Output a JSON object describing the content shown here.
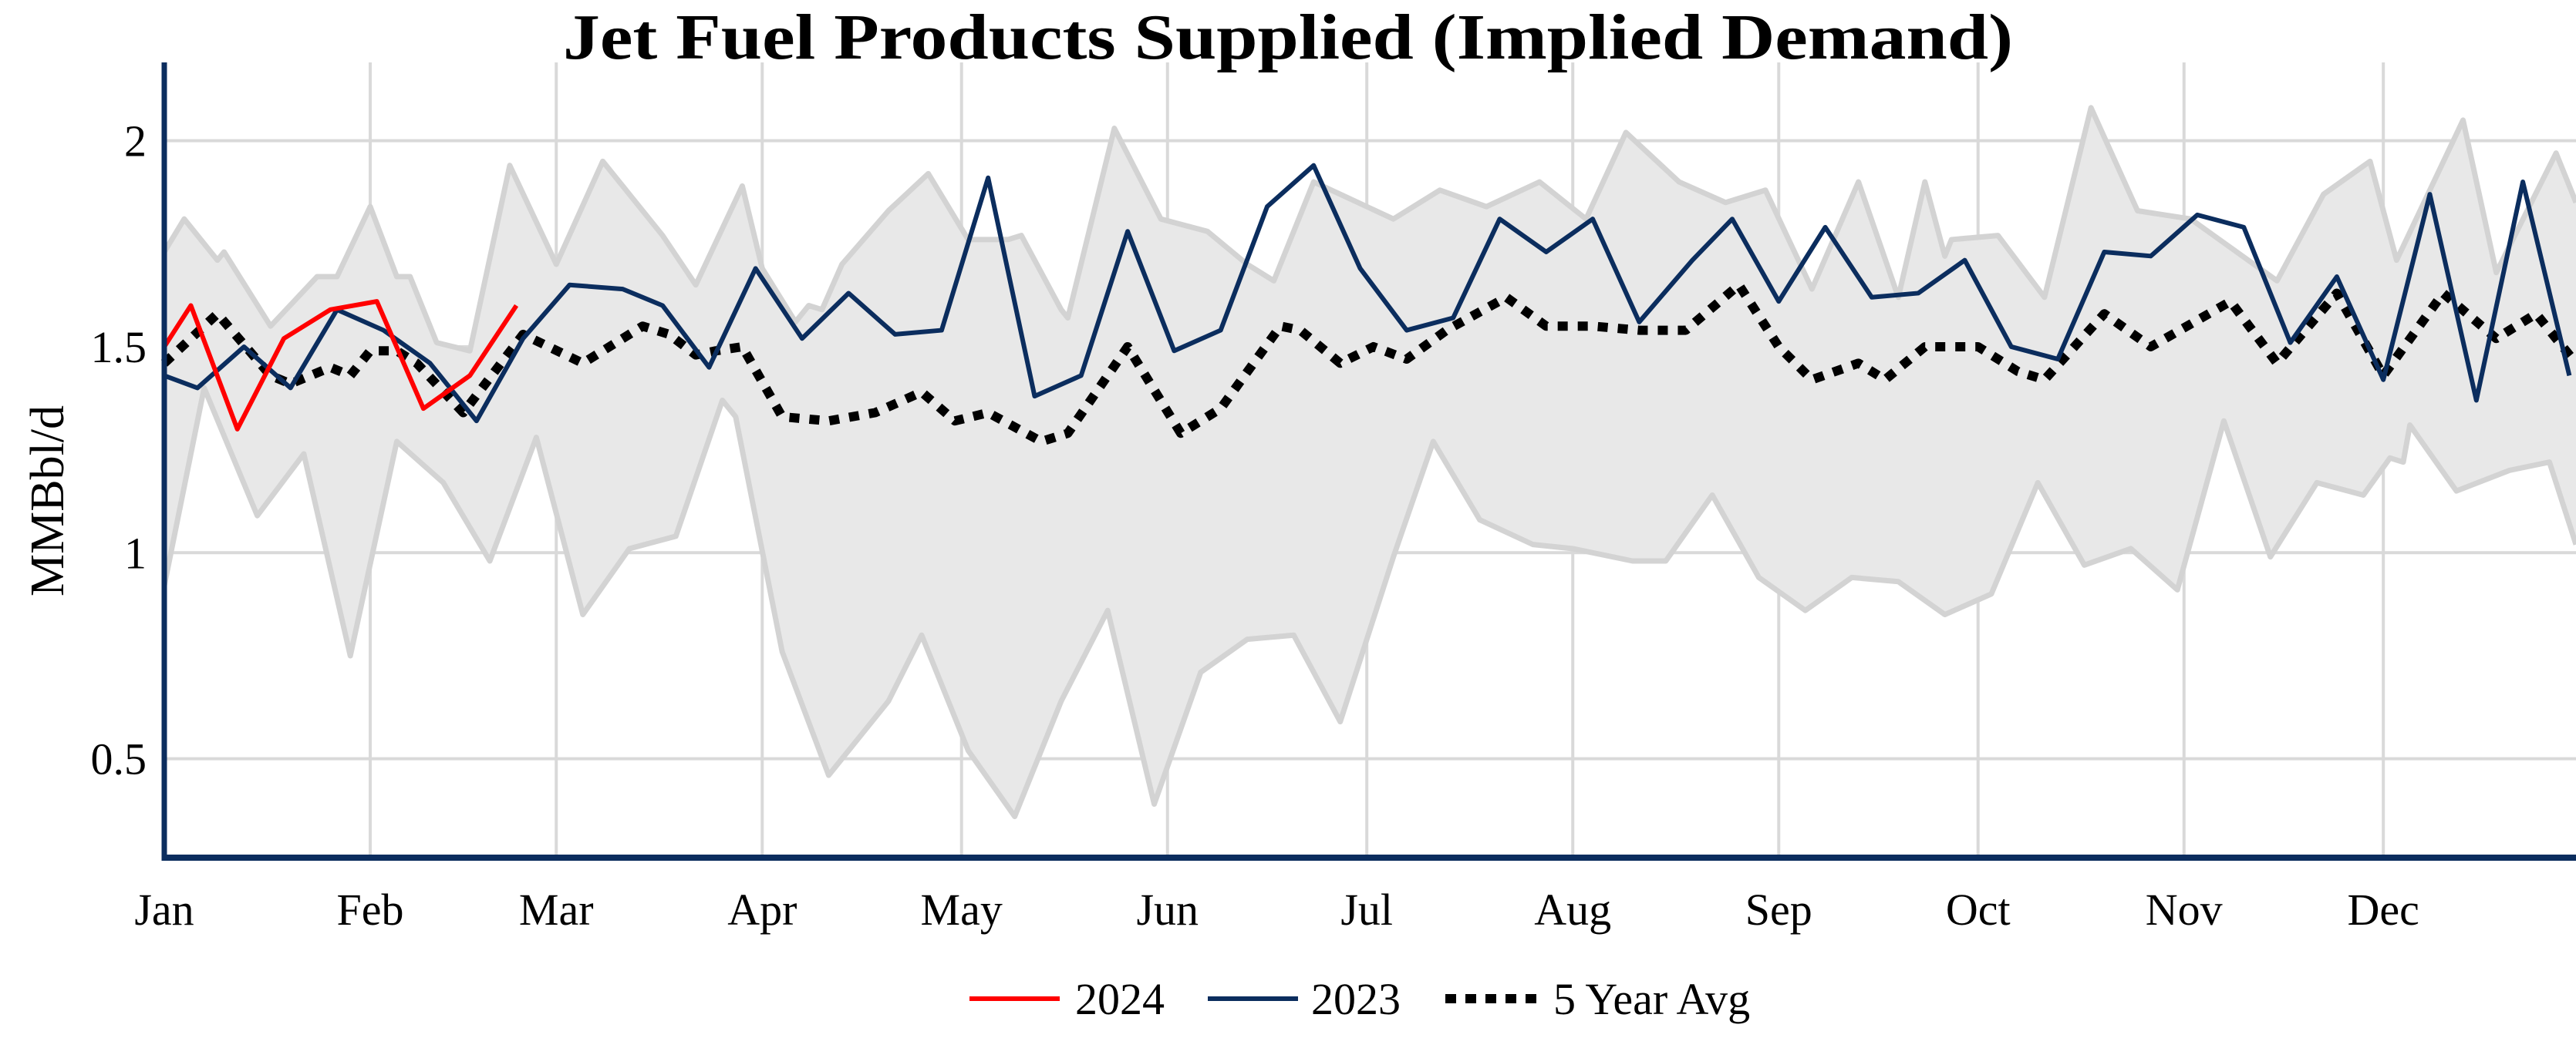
{
  "chart_data": {
    "type": "line",
    "title": "Jet Fuel Products Supplied (Implied Demand)",
    "xlabel": "",
    "ylabel": "MMBbl/d",
    "x_tick_labels": [
      "Jan",
      "Feb",
      "Mar",
      "Apr",
      "May",
      "Jun",
      "Jul",
      "Aug",
      "Sep",
      "Oct",
      "Nov",
      "Dec"
    ],
    "y_ticks": [
      0.5,
      1,
      1.5,
      2
    ],
    "y_tick_labels": [
      "0.5",
      "1",
      "1.5",
      "2"
    ],
    "xlim": [
      "01-01",
      "12-30"
    ],
    "ylim": [
      0.26,
      2.19
    ],
    "grid": true,
    "legend_position": "bottom",
    "colors": {
      "s2024": "#ff0000",
      "s2023": "#0b2d5e",
      "avg": "#000000",
      "band_fill": "#e8e8e8",
      "band_edge": "#d3d3d3",
      "grid": "#d9d9d9",
      "axis": "#0b2d5e"
    },
    "range_band": {
      "upper": [
        [
          "01-01",
          1.73
        ],
        [
          "01-04",
          1.81
        ],
        [
          "01-09",
          1.71
        ],
        [
          "01-10",
          1.73
        ],
        [
          "01-17",
          1.55
        ],
        [
          "01-24",
          1.67
        ],
        [
          "01-27",
          1.67
        ],
        [
          "02-01",
          1.84
        ],
        [
          "02-05",
          1.67
        ],
        [
          "02-07",
          1.67
        ],
        [
          "02-11",
          1.51
        ],
        [
          "02-16",
          1.49
        ],
        [
          "02-22",
          1.94
        ],
        [
          "03-01",
          1.7
        ],
        [
          "03-08",
          1.95
        ],
        [
          "03-17",
          1.77
        ],
        [
          "03-22",
          1.65
        ],
        [
          "03-29",
          1.89
        ],
        [
          "04-01",
          1.69
        ],
        [
          "04-06",
          1.56
        ],
        [
          "04-08",
          1.6
        ],
        [
          "04-10",
          1.59
        ],
        [
          "04-13",
          1.7
        ],
        [
          "04-20",
          1.83
        ],
        [
          "04-26",
          1.92
        ],
        [
          "05-02",
          1.76
        ],
        [
          "05-08",
          1.76
        ],
        [
          "05-10",
          1.77
        ],
        [
          "05-16",
          1.59
        ],
        [
          "05-17",
          1.57
        ],
        [
          "05-24",
          2.03
        ],
        [
          "05-31",
          1.81
        ],
        [
          "06-07",
          1.78
        ],
        [
          "06-13",
          1.7
        ],
        [
          "06-17",
          1.66
        ],
        [
          "06-23",
          1.9
        ],
        [
          "07-05",
          1.81
        ],
        [
          "07-12",
          1.88
        ],
        [
          "07-19",
          1.84
        ],
        [
          "07-27",
          1.9
        ],
        [
          "08-03",
          1.81
        ],
        [
          "08-09",
          2.02
        ],
        [
          "08-17",
          1.9
        ],
        [
          "08-24",
          1.85
        ],
        [
          "08-30",
          1.88
        ],
        [
          "09-06",
          1.64
        ],
        [
          "09-13",
          1.9
        ],
        [
          "09-19",
          1.62
        ],
        [
          "09-23",
          1.9
        ],
        [
          "09-26",
          1.72
        ],
        [
          "09-27",
          1.76
        ],
        [
          "10-04",
          1.77
        ],
        [
          "10-11",
          1.62
        ],
        [
          "10-18",
          2.08
        ],
        [
          "10-25",
          1.83
        ],
        [
          "11-02",
          1.81
        ],
        [
          "11-15",
          1.66
        ],
        [
          "11-22",
          1.87
        ],
        [
          "11-29",
          1.95
        ],
        [
          "12-03",
          1.71
        ],
        [
          "12-13",
          2.05
        ],
        [
          "12-18",
          1.68
        ],
        [
          "12-27",
          1.97
        ],
        [
          "12-30",
          1.85
        ]
      ],
      "lower": [
        [
          "01-01",
          0.92
        ],
        [
          "01-07",
          1.4
        ],
        [
          "01-15",
          1.09
        ],
        [
          "01-22",
          1.24
        ],
        [
          "01-29",
          0.75
        ],
        [
          "02-05",
          1.27
        ],
        [
          "02-12",
          1.17
        ],
        [
          "02-19",
          0.98
        ],
        [
          "02-26",
          1.28
        ],
        [
          "03-05",
          0.85
        ],
        [
          "03-12",
          1.01
        ],
        [
          "03-19",
          1.04
        ],
        [
          "03-26",
          1.37
        ],
        [
          "03-28",
          1.33
        ],
        [
          "04-04",
          0.76
        ],
        [
          "04-11",
          0.46
        ],
        [
          "04-20",
          0.64
        ],
        [
          "04-25",
          0.8
        ],
        [
          "05-02",
          0.52
        ],
        [
          "05-09",
          0.36
        ],
        [
          "05-16",
          0.64
        ],
        [
          "05-23",
          0.86
        ],
        [
          "05-30",
          0.39
        ],
        [
          "06-06",
          0.71
        ],
        [
          "06-13",
          0.79
        ],
        [
          "06-20",
          0.8
        ],
        [
          "06-27",
          0.59
        ],
        [
          "07-05",
          0.99
        ],
        [
          "07-11",
          1.27
        ],
        [
          "07-18",
          1.08
        ],
        [
          "07-26",
          1.02
        ],
        [
          "08-01",
          1.01
        ],
        [
          "08-10",
          0.98
        ],
        [
          "08-15",
          0.98
        ],
        [
          "08-22",
          1.14
        ],
        [
          "08-29",
          0.94
        ],
        [
          "09-05",
          0.86
        ],
        [
          "09-12",
          0.94
        ],
        [
          "09-19",
          0.93
        ],
        [
          "09-26",
          0.85
        ],
        [
          "10-03",
          0.9
        ],
        [
          "10-10",
          1.17
        ],
        [
          "10-17",
          0.97
        ],
        [
          "10-24",
          1.01
        ],
        [
          "10-31",
          0.91
        ],
        [
          "11-07",
          1.32
        ],
        [
          "11-14",
          0.99
        ],
        [
          "11-21",
          1.17
        ],
        [
          "11-28",
          1.14
        ],
        [
          "12-02",
          1.23
        ],
        [
          "12-04",
          1.22
        ],
        [
          "12-05",
          1.31
        ],
        [
          "12-12",
          1.15
        ],
        [
          "12-20",
          1.2
        ],
        [
          "12-26",
          1.22
        ],
        [
          "12-30",
          1.02
        ]
      ]
    },
    "series": [
      {
        "name": "2024",
        "color": "#ff0000",
        "style": "solid",
        "points": [
          [
            "01-01",
            1.5
          ],
          [
            "01-05",
            1.6
          ],
          [
            "01-12",
            1.3
          ],
          [
            "01-19",
            1.52
          ],
          [
            "01-26",
            1.59
          ],
          [
            "02-02",
            1.61
          ],
          [
            "02-09",
            1.35
          ],
          [
            "02-16",
            1.43
          ],
          [
            "02-23",
            1.6
          ]
        ]
      },
      {
        "name": "2023",
        "color": "#0b2d5e",
        "style": "solid",
        "points": [
          [
            "01-01",
            1.43
          ],
          [
            "01-06",
            1.4
          ],
          [
            "01-13",
            1.5
          ],
          [
            "01-20",
            1.4
          ],
          [
            "01-27",
            1.59
          ],
          [
            "02-03",
            1.54
          ],
          [
            "02-10",
            1.46
          ],
          [
            "02-17",
            1.32
          ],
          [
            "02-24",
            1.52
          ],
          [
            "03-03",
            1.65
          ],
          [
            "03-11",
            1.64
          ],
          [
            "03-17",
            1.6
          ],
          [
            "03-24",
            1.45
          ],
          [
            "03-31",
            1.69
          ],
          [
            "04-07",
            1.52
          ],
          [
            "04-14",
            1.63
          ],
          [
            "04-21",
            1.53
          ],
          [
            "04-28",
            1.54
          ],
          [
            "05-05",
            1.91
          ],
          [
            "05-12",
            1.38
          ],
          [
            "05-19",
            1.43
          ],
          [
            "05-26",
            1.78
          ],
          [
            "06-02",
            1.49
          ],
          [
            "06-09",
            1.54
          ],
          [
            "06-16",
            1.84
          ],
          [
            "06-23",
            1.94
          ],
          [
            "06-30",
            1.69
          ],
          [
            "07-07",
            1.54
          ],
          [
            "07-14",
            1.57
          ],
          [
            "07-21",
            1.81
          ],
          [
            "07-28",
            1.73
          ],
          [
            "08-04",
            1.81
          ],
          [
            "08-11",
            1.56
          ],
          [
            "08-19",
            1.71
          ],
          [
            "08-25",
            1.81
          ],
          [
            "09-01",
            1.61
          ],
          [
            "09-08",
            1.79
          ],
          [
            "09-15",
            1.62
          ],
          [
            "09-22",
            1.63
          ],
          [
            "09-29",
            1.71
          ],
          [
            "10-06",
            1.5
          ],
          [
            "10-13",
            1.47
          ],
          [
            "10-20",
            1.73
          ],
          [
            "10-27",
            1.72
          ],
          [
            "11-03",
            1.82
          ],
          [
            "11-10",
            1.79
          ],
          [
            "11-17",
            1.51
          ],
          [
            "11-24",
            1.67
          ],
          [
            "12-01",
            1.42
          ],
          [
            "12-08",
            1.87
          ],
          [
            "12-15",
            1.37
          ],
          [
            "12-22",
            1.9
          ],
          [
            "12-29",
            1.43
          ]
        ]
      },
      {
        "name": "5 Year Avg",
        "color": "#000000",
        "style": "dotted",
        "points": [
          [
            "01-01",
            1.46
          ],
          [
            "01-09",
            1.58
          ],
          [
            "01-17",
            1.43
          ],
          [
            "01-20",
            1.41
          ],
          [
            "01-26",
            1.45
          ],
          [
            "01-29",
            1.43
          ],
          [
            "02-01",
            1.49
          ],
          [
            "02-05",
            1.49
          ],
          [
            "02-08",
            1.46
          ],
          [
            "02-15",
            1.34
          ],
          [
            "02-24",
            1.53
          ],
          [
            "03-05",
            1.46
          ],
          [
            "03-14",
            1.55
          ],
          [
            "03-18",
            1.53
          ],
          [
            "03-22",
            1.48
          ],
          [
            "03-25",
            1.49
          ],
          [
            "03-29",
            1.5
          ],
          [
            "04-04",
            1.33
          ],
          [
            "04-11",
            1.32
          ],
          [
            "04-18",
            1.34
          ],
          [
            "04-25",
            1.39
          ],
          [
            "04-30",
            1.32
          ],
          [
            "05-05",
            1.34
          ],
          [
            "05-13",
            1.27
          ],
          [
            "05-17",
            1.29
          ],
          [
            "05-26",
            1.5
          ],
          [
            "06-03",
            1.29
          ],
          [
            "06-09",
            1.35
          ],
          [
            "06-18",
            1.55
          ],
          [
            "06-21",
            1.54
          ],
          [
            "06-27",
            1.46
          ],
          [
            "07-02",
            1.5
          ],
          [
            "07-07",
            1.47
          ],
          [
            "07-13",
            1.54
          ],
          [
            "07-22",
            1.62
          ],
          [
            "07-28",
            1.55
          ],
          [
            "08-04",
            1.55
          ],
          [
            "08-11",
            1.54
          ],
          [
            "08-18",
            1.54
          ],
          [
            "08-26",
            1.65
          ],
          [
            "09-01",
            1.5
          ],
          [
            "09-06",
            1.42
          ],
          [
            "09-13",
            1.46
          ],
          [
            "09-17",
            1.42
          ],
          [
            "09-23",
            1.5
          ],
          [
            "10-01",
            1.5
          ],
          [
            "10-07",
            1.44
          ],
          [
            "10-11",
            1.42
          ],
          [
            "10-20",
            1.58
          ],
          [
            "10-27",
            1.5
          ],
          [
            "11-08",
            1.61
          ],
          [
            "11-15",
            1.46
          ],
          [
            "11-24",
            1.63
          ],
          [
            "12-01",
            1.43
          ],
          [
            "12-10",
            1.63
          ],
          [
            "12-18",
            1.52
          ],
          [
            "12-24",
            1.58
          ],
          [
            "12-30",
            1.46
          ]
        ]
      }
    ]
  }
}
